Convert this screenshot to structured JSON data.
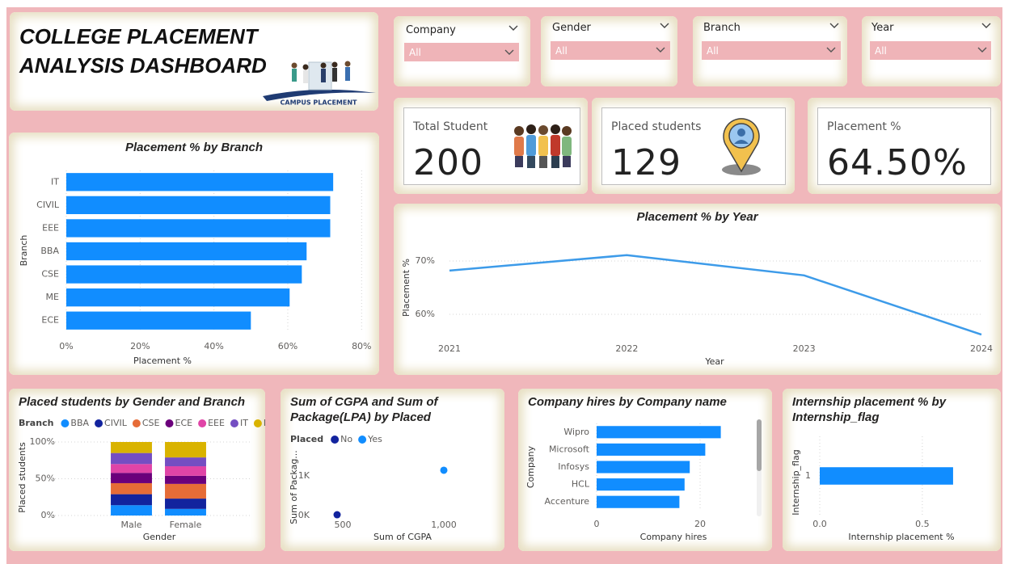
{
  "header": {
    "title": "COLLEGE PLACEMENT ANALYSIS DASHBOARD",
    "image_caption": "CAMPUS PLACEMENT"
  },
  "filters": [
    {
      "label": "Company",
      "value": "All"
    },
    {
      "label": "Gender",
      "value": "All"
    },
    {
      "label": "Branch",
      "value": "All"
    },
    {
      "label": "Year",
      "value": "All"
    }
  ],
  "kpis": [
    {
      "label": "Total Student",
      "value": 200
    },
    {
      "label": "Placed students",
      "value": 129
    },
    {
      "label": "Placement %",
      "value": 64.5,
      "value_label": "64.50%"
    }
  ],
  "chart_data": [
    {
      "type": "hbar",
      "title": "Placement % by Branch",
      "categories": [
        "IT",
        "CIVIL",
        "EEE",
        "BBA",
        "CSE",
        "ME",
        "ECE"
      ],
      "values": [
        72.3,
        71.5,
        71.5,
        65.1,
        63.8,
        60.5,
        50.0
      ],
      "color": "#118dff",
      "xlim": [
        0,
        83
      ],
      "xticks": [
        {
          "value": 0,
          "label": "0%"
        },
        {
          "value": 20,
          "label": "20%"
        },
        {
          "value": 40,
          "label": "40%"
        },
        {
          "value": 60,
          "label": "60%"
        },
        {
          "value": 80,
          "label": "80%"
        }
      ],
      "x_label": "Placement %",
      "y_label": "Branch",
      "grid": true
    },
    {
      "type": "line",
      "title": "Placement % by Year",
      "categories": [
        "2021",
        "2022",
        "2023",
        "2024"
      ],
      "values": [
        68.2,
        71.1,
        67.3,
        56.2
      ],
      "color": "#3d9be9",
      "ylim": [
        55,
        75
      ],
      "yticks": [
        {
          "value": 60,
          "label": "60%"
        },
        {
          "value": 70,
          "label": "70%"
        }
      ],
      "x_label": "Year",
      "y_label": "Placement %",
      "grid": true
    },
    {
      "type": "stacked_bar",
      "title": "Placed students by Gender and Branch",
      "legend_title": "Branch",
      "categories": [
        "Male",
        "Female"
      ],
      "series": [
        {
          "name": "BBA",
          "color": "#118dff",
          "values": [
            14,
            9
          ]
        },
        {
          "name": "CIVIL",
          "color": "#12239e",
          "values": [
            15,
            14
          ]
        },
        {
          "name": "CSE",
          "color": "#e66c37",
          "values": [
            15,
            20
          ]
        },
        {
          "name": "ECE",
          "color": "#6b007b",
          "values": [
            14,
            11
          ]
        },
        {
          "name": "EEE",
          "color": "#e044a7",
          "values": [
            12,
            13
          ]
        },
        {
          "name": "IT",
          "color": "#744ec2",
          "values": [
            15,
            12
          ]
        },
        {
          "name": "ME",
          "color": "#d9b300",
          "values": [
            15,
            21
          ]
        }
      ],
      "ylim": [
        0,
        100
      ],
      "yticks": [
        {
          "value": 0,
          "label": "0%"
        },
        {
          "value": 50,
          "label": "50%"
        },
        {
          "value": 100,
          "label": "100%"
        }
      ],
      "x_label": "Gender",
      "y_label": "Placed students",
      "grid": true
    },
    {
      "type": "scatter",
      "title": "Sum of CGPA and Sum of Package(LPA) by Placed",
      "legend_title": "Placed",
      "series": [
        {
          "name": "No",
          "color": "#12239e",
          "x": [
            472
          ],
          "values": [
            20
          ]
        },
        {
          "name": "Yes",
          "color": "#118dff",
          "x": [
            1000
          ],
          "values": [
            1143
          ]
        }
      ],
      "xlim": [
        350,
        1250
      ],
      "xticks": [
        500,
        {
          "value": 1000,
          "label": "1,000"
        }
      ],
      "ylim": [
        0,
        1600
      ],
      "yticks": [
        {
          "value": 0,
          "label": "0K"
        },
        {
          "value": 1000,
          "label": "1K"
        }
      ],
      "x_label": "Sum of CGPA",
      "y_label": "Sum of Packag..."
    },
    {
      "type": "hbar",
      "title": "Company hires by Company name",
      "categories": [
        "Wipro",
        "Microsoft",
        "Infosys",
        "HCL",
        "Accenture"
      ],
      "values": [
        24,
        21,
        18,
        17,
        16
      ],
      "color": "#118dff",
      "xlim": [
        0,
        30
      ],
      "xticks": [
        0,
        20
      ],
      "x_label": "Company hires",
      "y_label": "Company",
      "grid": true
    },
    {
      "type": "hbar",
      "title": "Internship placement % by Internship_flag",
      "categories": [
        "1"
      ],
      "values": [
        0.65
      ],
      "color": "#118dff",
      "xlim": [
        0,
        0.8
      ],
      "xticks": [
        {
          "value": 0,
          "label": "0.0"
        },
        0.5
      ],
      "x_label": "Internship placement %",
      "y_label": "Internship_flag",
      "grid": true
    }
  ]
}
